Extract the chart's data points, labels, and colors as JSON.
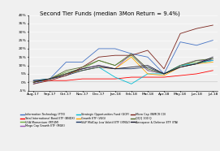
{
  "title": "Second Tier Funds (median 3Mon Return = 9.4%)",
  "x_labels": [
    "Aug-17",
    "Sep-17",
    "Oct-17",
    "Nov-17",
    "Dec-17",
    "Jan-18",
    "Feb-18",
    "Mar-18",
    "Apr-18",
    "May-18",
    "Jun-18",
    "Jul-18"
  ],
  "ylim": [
    -5,
    40
  ],
  "yticks": [
    -5,
    0,
    5,
    10,
    15,
    20,
    25,
    30,
    35,
    40
  ],
  "bg_color": "#f0f0f0",
  "series": [
    {
      "name": "Information Technology (FTX)",
      "color": "#4472c4",
      "values": [
        -1,
        2,
        12,
        12,
        20,
        20,
        17,
        15,
        5,
        24,
        22,
        25
      ]
    },
    {
      "name": "Total International Bond ETF (BNDX)",
      "color": "#ff0000",
      "values": [
        1,
        1,
        1,
        2,
        2,
        2,
        3,
        3,
        3,
        4,
        5,
        7
      ]
    },
    {
      "name": "USA Momentum (MTUM)",
      "color": "#70ad47",
      "values": [
        0,
        2,
        6,
        8,
        13,
        10,
        16,
        7,
        5,
        10,
        12,
        13
      ]
    },
    {
      "name": "Mega Cap Growth ETF (MGK)",
      "color": "#9b59b6",
      "values": [
        0,
        2,
        5,
        8,
        10,
        8,
        17,
        7,
        5,
        10,
        13,
        13
      ]
    },
    {
      "name": "Strategic Opportunities Fund (GOF)",
      "color": "#00bcd4",
      "values": [
        1,
        2,
        5,
        7,
        9,
        3,
        -1,
        5,
        5,
        10,
        11,
        13
      ]
    },
    {
      "name": "Growth ETF (VUG)",
      "color": "#ffa500",
      "values": [
        0,
        2,
        5,
        7,
        9,
        8,
        15,
        5,
        4,
        9,
        11,
        12
      ]
    },
    {
      "name": "S&P MidCap Low Volatil ETF (XMLV)",
      "color": "#1f3864",
      "values": [
        1,
        2,
        4,
        7,
        9,
        8,
        8,
        9,
        5,
        9,
        11,
        14
      ]
    },
    {
      "name": "Micro Cap (WMCR C0)",
      "color": "#7b241c",
      "values": [
        -1,
        1,
        4,
        9,
        15,
        16,
        16,
        19,
        8,
        29,
        32,
        34
      ]
    },
    {
      "name": "QQQ 100 Q",
      "color": "#556b2f",
      "values": [
        0,
        2,
        7,
        9,
        13,
        10,
        17,
        8,
        5,
        10,
        13,
        14
      ]
    },
    {
      "name": "Aerospace & Defense ETF (ITA)",
      "color": "#1a1a2e",
      "values": [
        0,
        2,
        5,
        8,
        10,
        8,
        9,
        10,
        5,
        9,
        11,
        15
      ]
    }
  ]
}
